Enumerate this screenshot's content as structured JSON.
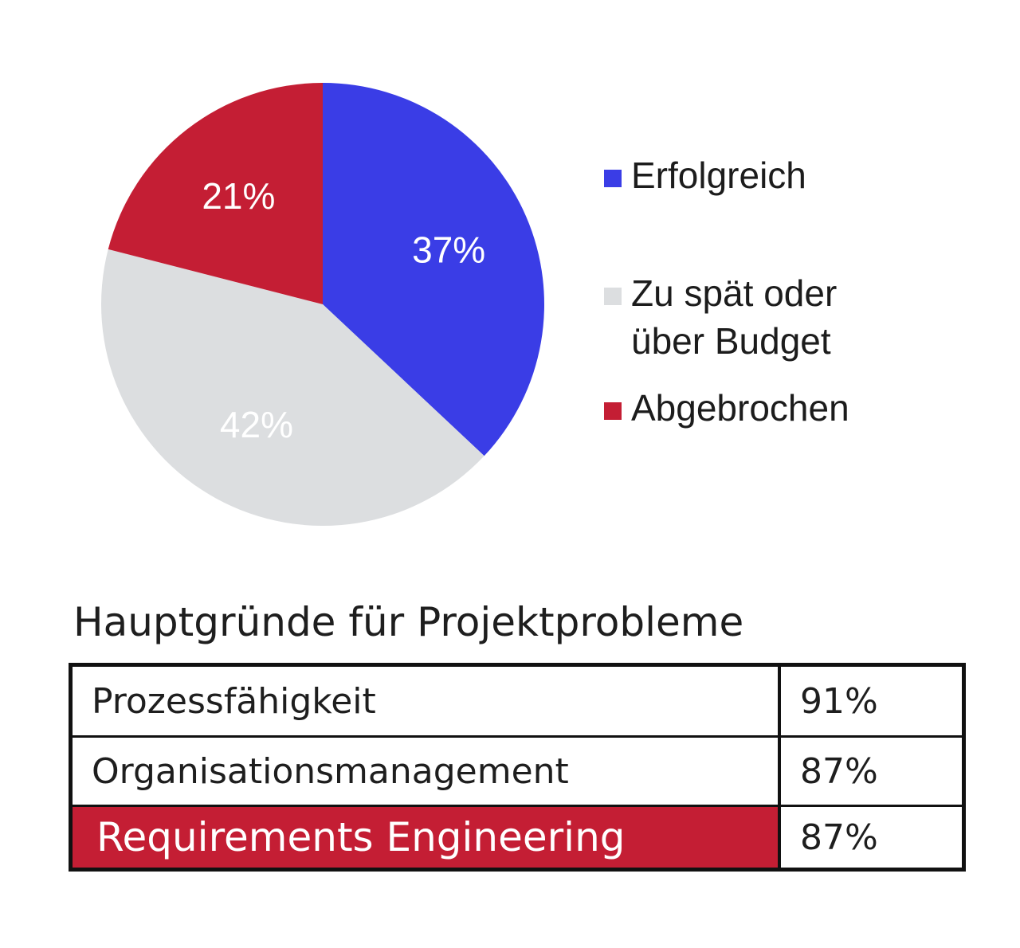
{
  "chart_data": {
    "type": "pie",
    "slices": [
      {
        "name": "Erfolgreich",
        "value": 37,
        "label": "37%",
        "color": "#3a3de6",
        "label_color": "#ffffff"
      },
      {
        "name": "Zu spät oder über Budget",
        "value": 42,
        "label": "42%",
        "color": "#dcdee0",
        "label_color": "#ffffff"
      },
      {
        "name": "Abgebrochen",
        "value": 21,
        "label": "21%",
        "color": "#c41e34",
        "label_color": "#ffffff"
      }
    ],
    "legend": {
      "position": "right",
      "items": [
        {
          "label": "Erfolgreich",
          "color": "#3a3de6"
        },
        {
          "label": "Zu spät oder über Budget",
          "color": "#dcdee0"
        },
        {
          "label": "Abgebrochen",
          "color": "#c41e34"
        }
      ]
    }
  },
  "table": {
    "title": "Hauptgründe für Projektprobleme",
    "rows": [
      {
        "label": "Prozessfähigkeit",
        "value": "91%",
        "highlight": false
      },
      {
        "label": "Organisationsmanagement",
        "value": "87%",
        "highlight": false
      },
      {
        "label": "Requirements Engineering",
        "value": "87%",
        "highlight": true
      }
    ],
    "highlight_color": "#c41e34"
  }
}
